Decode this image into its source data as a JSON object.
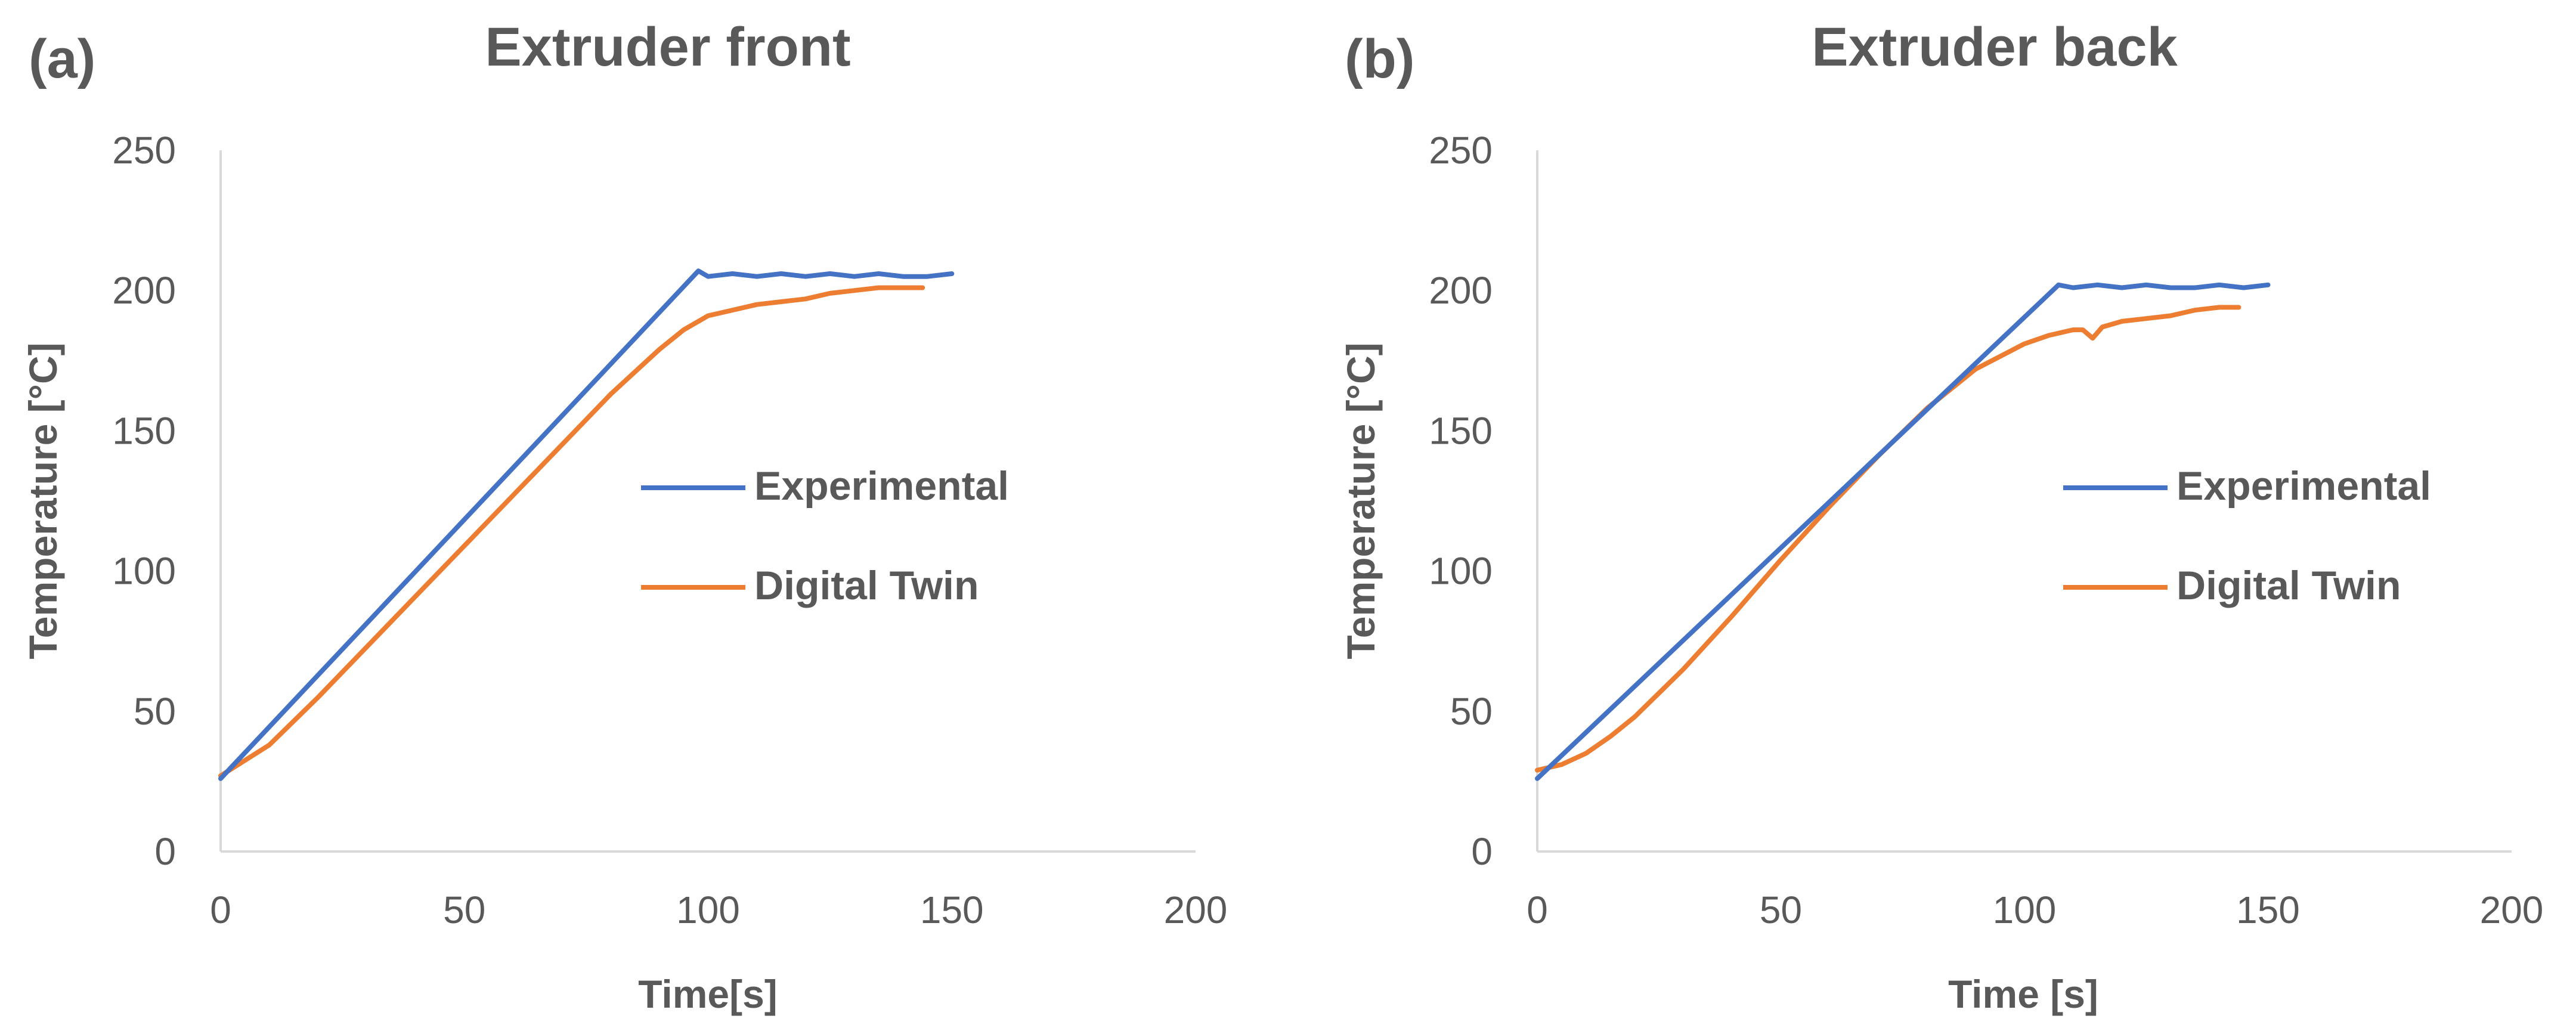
{
  "chart_data": [
    {
      "type": "line",
      "panel": "(a)",
      "title": "Extruder front",
      "xlabel": "Time[s]",
      "ylabel": "Temperature [°C]",
      "xlim": [
        0,
        200
      ],
      "ylim": [
        0,
        250
      ],
      "xticks": [
        0,
        50,
        100,
        150,
        200
      ],
      "yticks": [
        0,
        50,
        100,
        150,
        200,
        250
      ],
      "grid": false,
      "legend_position": "center-right",
      "series": [
        {
          "name": "Experimental",
          "color": "#4472c4",
          "x": [
            0,
            98,
            100,
            105,
            110,
            115,
            120,
            125,
            130,
            135,
            140,
            145,
            150
          ],
          "y": [
            26,
            207,
            205,
            206,
            205,
            206,
            205,
            206,
            205,
            206,
            205,
            205,
            206
          ]
        },
        {
          "name": "Digital Twin",
          "color": "#ed7d31",
          "x": [
            0,
            10,
            20,
            30,
            40,
            50,
            60,
            70,
            80,
            90,
            95,
            100,
            105,
            110,
            115,
            120,
            125,
            130,
            135,
            140,
            144
          ],
          "y": [
            27,
            38,
            55,
            73,
            91,
            109,
            127,
            145,
            163,
            179,
            186,
            191,
            193,
            195,
            196,
            197,
            199,
            200,
            201,
            201,
            201
          ]
        }
      ]
    },
    {
      "type": "line",
      "panel": "(b)",
      "title": "Extruder back",
      "xlabel": "Time [s]",
      "ylabel": "Temperature [°C]",
      "xlim": [
        0,
        200
      ],
      "ylim": [
        0,
        250
      ],
      "xticks": [
        0,
        50,
        100,
        150,
        200
      ],
      "yticks": [
        0,
        50,
        100,
        150,
        200,
        250
      ],
      "grid": false,
      "legend_position": "center-right",
      "series": [
        {
          "name": "Experimental",
          "color": "#4472c4",
          "x": [
            0,
            107,
            110,
            115,
            120,
            125,
            130,
            135,
            140,
            145,
            150
          ],
          "y": [
            26,
            202,
            201,
            202,
            201,
            202,
            201,
            201,
            202,
            201,
            202
          ]
        },
        {
          "name": "Digital Twin",
          "color": "#ed7d31",
          "x": [
            0,
            5,
            10,
            15,
            20,
            30,
            40,
            50,
            60,
            70,
            80,
            90,
            100,
            105,
            110,
            112,
            114,
            116,
            120,
            125,
            130,
            135,
            140,
            144
          ],
          "y": [
            29,
            31,
            35,
            41,
            48,
            65,
            84,
            104,
            123,
            141,
            158,
            172,
            181,
            184,
            186,
            186,
            183,
            187,
            189,
            190,
            191,
            193,
            194,
            194
          ]
        }
      ]
    }
  ]
}
